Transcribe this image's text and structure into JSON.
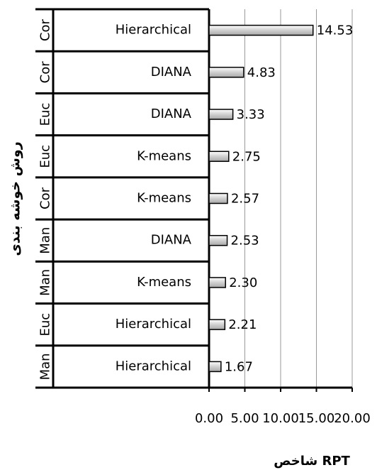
{
  "chart_data": {
    "type": "bar",
    "orientation": "horizontal",
    "x_label": "شاخص RPT",
    "y_label": "روش خوشه بندی",
    "groups": [
      "Cor",
      "Cor",
      "Euc",
      "Euc",
      "Cor",
      "Man",
      "Man",
      "Euc",
      "Man"
    ],
    "categories": [
      "Hierarchical",
      "DIANA",
      "DIANA",
      "K-means",
      "K-means",
      "DIANA",
      "K-means",
      "Hierarchical",
      "Hierarchical"
    ],
    "values": [
      14.53,
      4.83,
      3.33,
      2.75,
      2.57,
      2.53,
      2.3,
      2.21,
      1.67
    ],
    "value_labels": [
      "14.53",
      "4.83",
      "3.33",
      "2.75",
      "2.57",
      "2.53",
      "2.30",
      "2.21",
      "1.67"
    ],
    "color": "#d9d9d9",
    "xlim": [
      0,
      20
    ],
    "xticks": [
      {
        "value": 0,
        "label": "0.00"
      },
      {
        "value": 5,
        "label": "5.00"
      },
      {
        "value": 10,
        "label": "10.00"
      },
      {
        "value": 15,
        "label": "15.00"
      },
      {
        "value": 20,
        "label": "20.00"
      }
    ],
    "grid": true
  }
}
